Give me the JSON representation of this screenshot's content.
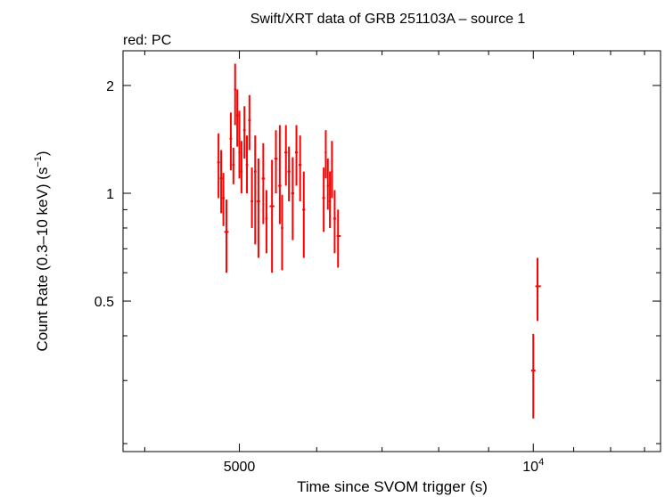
{
  "chart_data": {
    "type": "scatter",
    "title": "Swift/XRT data of GRB 251103A – source 1",
    "subtitle": "red: PC",
    "xlabel": "Time since SVOM trigger (s)",
    "ylabel": "Count Rate (0.3–10 keV) (s",
    "ylabel_sup": "−1",
    "ylabel_close": ")",
    "x_scale": "log",
    "y_scale": "log",
    "xlim": [
      3800,
      13500
    ],
    "ylim": [
      0.19,
      2.5
    ],
    "x_ticks": [
      {
        "value": 5000,
        "label": "5000"
      },
      {
        "value": 10000,
        "label": "10",
        "sup": "4"
      }
    ],
    "y_ticks": [
      {
        "value": 0.5,
        "label": "0.5"
      },
      {
        "value": 1,
        "label": "1"
      },
      {
        "value": 2,
        "label": "2"
      }
    ],
    "series": [
      {
        "color": "#ff0000",
        "points": [
          {
            "x": 4760,
            "xlo": 4745,
            "xhi": 4775,
            "y": 1.22,
            "ylo": 0.97,
            "yhi": 1.47
          },
          {
            "x": 4790,
            "xlo": 4775,
            "xhi": 4805,
            "y": 1.1,
            "ylo": 0.88,
            "yhi": 1.32
          },
          {
            "x": 4815,
            "xlo": 4800,
            "xhi": 4830,
            "y": 0.97,
            "ylo": 0.81,
            "yhi": 1.14
          },
          {
            "x": 4850,
            "xlo": 4825,
            "xhi": 4875,
            "y": 0.78,
            "ylo": 0.6,
            "yhi": 0.96
          },
          {
            "x": 4900,
            "xlo": 4885,
            "xhi": 4915,
            "y": 1.42,
            "ylo": 1.16,
            "yhi": 1.68
          },
          {
            "x": 4930,
            "xlo": 4915,
            "xhi": 4945,
            "y": 1.2,
            "ylo": 1.06,
            "yhi": 1.34
          },
          {
            "x": 4950,
            "xlo": 4938,
            "xhi": 4962,
            "y": 1.95,
            "ylo": 1.55,
            "yhi": 2.3
          },
          {
            "x": 4975,
            "xlo": 4962,
            "xhi": 4988,
            "y": 1.65,
            "ylo": 1.35,
            "yhi": 1.95
          },
          {
            "x": 5000,
            "xlo": 4988,
            "xhi": 5012,
            "y": 1.3,
            "ylo": 1.1,
            "yhi": 1.7
          },
          {
            "x": 5025,
            "xlo": 5012,
            "xhi": 5038,
            "y": 1.15,
            "ylo": 1.0,
            "yhi": 1.4
          },
          {
            "x": 5060,
            "xlo": 5045,
            "xhi": 5075,
            "y": 1.5,
            "ylo": 1.25,
            "yhi": 1.75
          },
          {
            "x": 5090,
            "xlo": 5075,
            "xhi": 5105,
            "y": 1.2,
            "ylo": 1.0,
            "yhi": 1.45
          },
          {
            "x": 5120,
            "xlo": 5105,
            "xhi": 5135,
            "y": 1.6,
            "ylo": 1.32,
            "yhi": 1.88
          },
          {
            "x": 5150,
            "xlo": 5135,
            "xhi": 5165,
            "y": 0.95,
            "ylo": 0.8,
            "yhi": 1.18
          },
          {
            "x": 5190,
            "xlo": 5175,
            "xhi": 5205,
            "y": 1.15,
            "ylo": 0.72,
            "yhi": 1.45
          },
          {
            "x": 5230,
            "xlo": 5210,
            "xhi": 5250,
            "y": 0.95,
            "ylo": 0.66,
            "yhi": 1.25
          },
          {
            "x": 5290,
            "xlo": 5270,
            "xhi": 5310,
            "y": 1.1,
            "ylo": 0.82,
            "yhi": 1.38
          },
          {
            "x": 5330,
            "xlo": 5315,
            "xhi": 5345,
            "y": 0.85,
            "ylo": 0.68,
            "yhi": 1.02
          },
          {
            "x": 5400,
            "xlo": 5370,
            "xhi": 5430,
            "y": 0.92,
            "ylo": 0.6,
            "yhi": 1.24
          },
          {
            "x": 5450,
            "xlo": 5430,
            "xhi": 5470,
            "y": 1.25,
            "ylo": 1.0,
            "yhi": 1.5
          },
          {
            "x": 5500,
            "xlo": 5480,
            "xhi": 5520,
            "y": 1.05,
            "ylo": 0.82,
            "yhi": 1.55
          },
          {
            "x": 5530,
            "xlo": 5515,
            "xhi": 5545,
            "y": 0.8,
            "ylo": 0.61,
            "yhi": 0.99
          },
          {
            "x": 5580,
            "xlo": 5560,
            "xhi": 5600,
            "y": 1.3,
            "ylo": 1.05,
            "yhi": 1.55
          },
          {
            "x": 5620,
            "xlo": 5600,
            "xhi": 5640,
            "y": 1.15,
            "ylo": 0.95,
            "yhi": 1.35
          },
          {
            "x": 5670,
            "xlo": 5650,
            "xhi": 5690,
            "y": 1.0,
            "ylo": 0.74,
            "yhi": 1.26
          },
          {
            "x": 5720,
            "xlo": 5700,
            "xhi": 5740,
            "y": 1.3,
            "ylo": 1.05,
            "yhi": 1.55
          },
          {
            "x": 5770,
            "xlo": 5750,
            "xhi": 5790,
            "y": 1.2,
            "ylo": 0.95,
            "yhi": 1.45
          },
          {
            "x": 5820,
            "xlo": 5800,
            "xhi": 5840,
            "y": 0.9,
            "ylo": 0.66,
            "yhi": 1.15
          },
          {
            "x": 6100,
            "xlo": 6080,
            "xhi": 6120,
            "y": 0.97,
            "ylo": 0.78,
            "yhi": 1.18
          },
          {
            "x": 6130,
            "xlo": 6115,
            "xhi": 6145,
            "y": 1.3,
            "ylo": 1.1,
            "yhi": 1.5
          },
          {
            "x": 6160,
            "xlo": 6145,
            "xhi": 6175,
            "y": 1.05,
            "ylo": 0.9,
            "yhi": 1.25
          },
          {
            "x": 6190,
            "xlo": 6175,
            "xhi": 6205,
            "y": 0.95,
            "ylo": 0.8,
            "yhi": 1.15
          },
          {
            "x": 6220,
            "xlo": 6205,
            "xhi": 6235,
            "y": 1.15,
            "ylo": 0.97,
            "yhi": 1.4
          },
          {
            "x": 6260,
            "xlo": 6240,
            "xhi": 6280,
            "y": 0.85,
            "ylo": 0.68,
            "yhi": 1.02
          },
          {
            "x": 6310,
            "xlo": 6290,
            "xhi": 6350,
            "y": 0.76,
            "ylo": 0.62,
            "yhi": 0.9
          },
          {
            "x": 10000,
            "xlo": 9950,
            "xhi": 10050,
            "y": 0.32,
            "ylo": 0.235,
            "yhi": 0.405
          },
          {
            "x": 10100,
            "xlo": 10050,
            "xhi": 10180,
            "y": 0.55,
            "ylo": 0.44,
            "yhi": 0.66
          }
        ]
      }
    ]
  }
}
